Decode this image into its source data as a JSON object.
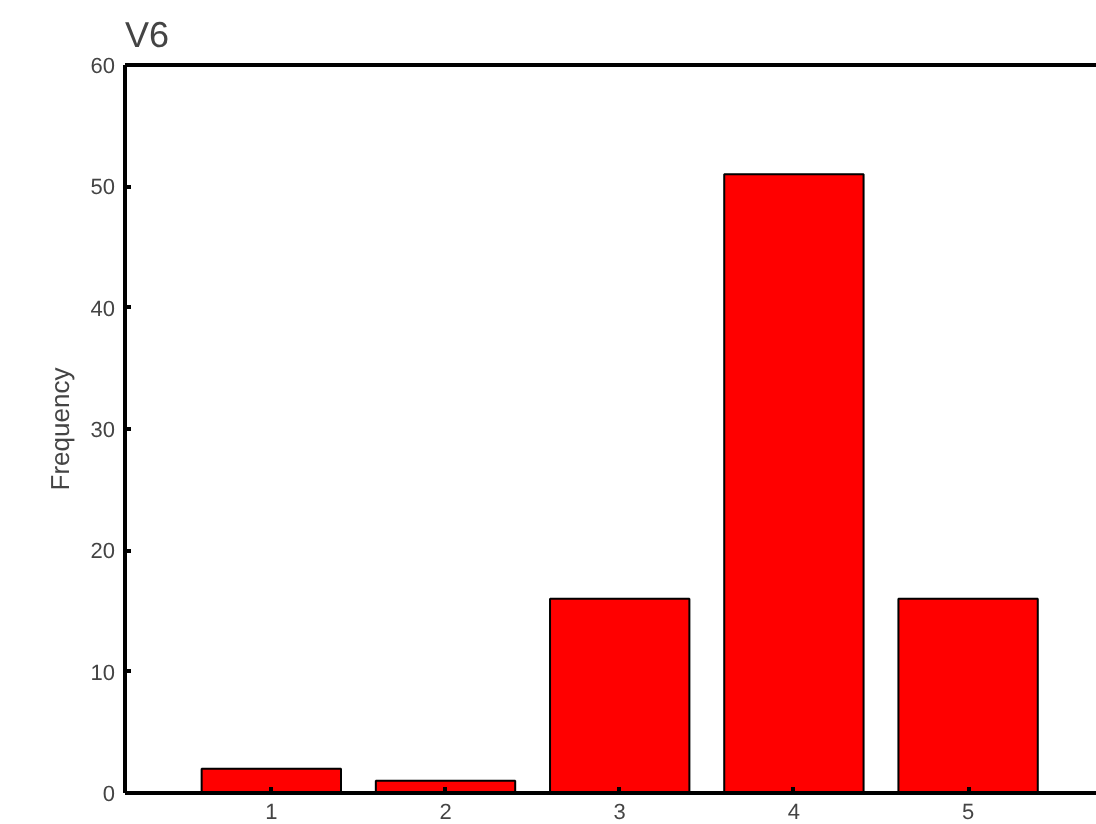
{
  "chart_data": {
    "type": "bar",
    "title": "V6",
    "ylabel": "Frequency",
    "categories": [
      "1",
      "2",
      "3",
      "4",
      "5"
    ],
    "values": [
      2,
      1,
      16,
      51,
      16
    ],
    "color": "#ff0000",
    "ylim": [
      0,
      60
    ],
    "yticks": [
      0,
      10,
      20,
      30,
      40,
      50,
      60
    ],
    "grid": false
  }
}
